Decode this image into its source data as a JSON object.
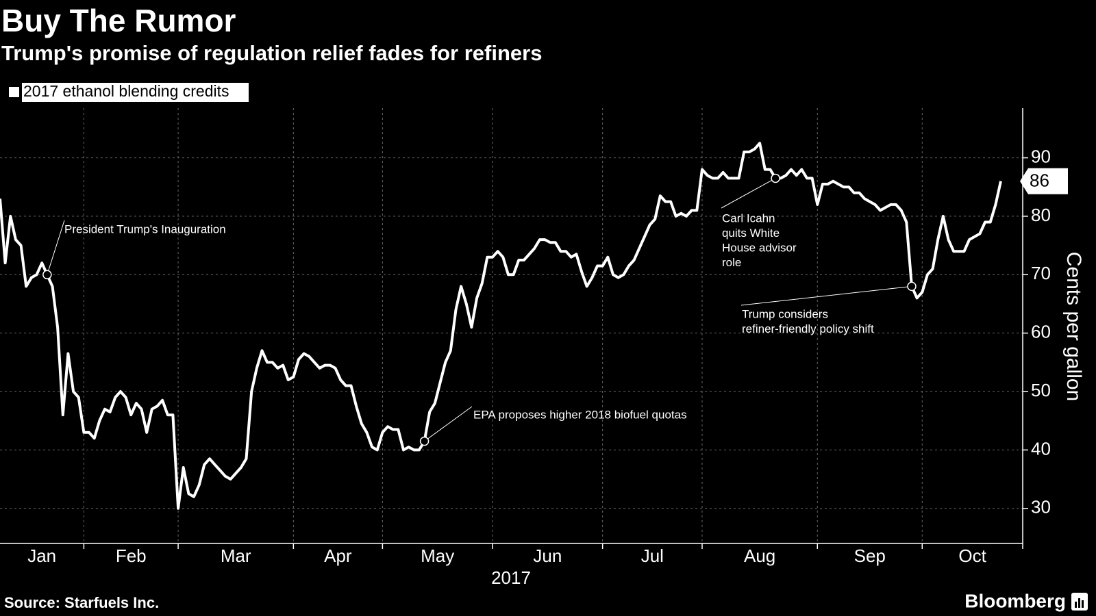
{
  "chart_data": {
    "type": "line",
    "title": "Buy The Rumor",
    "subtitle": "Trump's promise of regulation relief fades for refiners",
    "y_label": "Cents per gallon",
    "x_label": "2017",
    "source": "Source: Starfuels Inc.",
    "brand": "Bloomberg",
    "legend_position": "top-left",
    "grid": true,
    "ylim": [
      24,
      98.5
    ],
    "yticks": [
      30,
      40,
      50,
      60,
      70,
      80,
      90
    ],
    "categories": [
      "Jan",
      null,
      null,
      null,
      null,
      null,
      null,
      null,
      null,
      null,
      null,
      null,
      null,
      null,
      null,
      null,
      "Feb",
      null,
      null,
      null,
      null,
      null,
      null,
      null,
      null,
      null,
      null,
      null,
      null,
      null,
      null,
      null,
      null,
      null,
      "Mar",
      null,
      null,
      null,
      null,
      null,
      null,
      null,
      null,
      null,
      null,
      null,
      null,
      null,
      null,
      null,
      null,
      null,
      null,
      null,
      null,
      null,
      "Apr",
      null,
      null,
      null,
      null,
      null,
      null,
      null,
      null,
      null,
      null,
      null,
      null,
      null,
      null,
      null,
      null,
      "May",
      null,
      null,
      null,
      null,
      null,
      null,
      null,
      null,
      null,
      null,
      null,
      null,
      null,
      null,
      null,
      null,
      null,
      null,
      null,
      null,
      "Jun",
      null,
      null,
      null,
      null,
      null,
      null,
      null,
      null,
      null,
      null,
      null,
      null,
      null,
      null,
      null,
      null,
      null,
      null,
      null,
      null,
      "Jul",
      null,
      null,
      null,
      null,
      null,
      null,
      null,
      null,
      null,
      null,
      null,
      null,
      null,
      null,
      null,
      null,
      null,
      null,
      "Aug",
      null,
      null,
      null,
      null,
      null,
      null,
      null,
      null,
      null,
      null,
      null,
      null,
      null,
      null,
      null,
      null,
      null,
      null,
      null,
      null,
      null,
      "Sep",
      null,
      null,
      null,
      null,
      null,
      null,
      null,
      null,
      null,
      null,
      null,
      null,
      null,
      null,
      null,
      null,
      null,
      null,
      null,
      "Oct",
      null,
      null,
      null,
      null,
      null,
      null,
      null,
      null,
      null,
      null,
      null,
      null,
      null,
      null,
      null
    ],
    "series": [
      {
        "name": "2017 ethanol blending credits",
        "color": "#ffffff",
        "values": [
          83,
          72,
          80,
          76,
          75,
          68,
          69.5,
          70,
          72,
          70,
          68,
          61,
          46,
          56.5,
          50,
          49,
          43,
          43,
          42,
          45,
          47,
          46.5,
          49,
          50,
          49,
          46,
          48,
          47,
          43,
          47,
          47.5,
          48.5,
          46,
          46,
          30,
          37,
          32.5,
          32,
          34,
          37.5,
          38.5,
          37.5,
          36.5,
          35.5,
          35,
          36,
          37,
          38.5,
          50,
          54,
          57,
          55,
          55,
          54,
          54.5,
          52,
          52.5,
          55.5,
          56.5,
          56,
          55,
          54,
          54.5,
          54.5,
          54,
          52,
          51,
          51,
          47.5,
          44.5,
          43,
          40.5,
          40,
          43,
          44,
          43.5,
          43.5,
          40,
          40.5,
          40,
          40,
          41.5,
          46.5,
          48,
          51.5,
          55,
          57,
          64,
          68,
          65,
          61,
          66,
          68.5,
          73,
          73,
          74,
          73,
          70,
          70,
          72.5,
          72.5,
          73.5,
          74.5,
          76,
          76,
          75.5,
          75.5,
          74,
          74,
          73,
          73.5,
          70.5,
          68,
          69.5,
          71.5,
          71.5,
          73,
          70,
          69.5,
          70,
          71.5,
          72.5,
          74.5,
          76.5,
          78.5,
          79.5,
          83.5,
          82.5,
          82.5,
          80,
          80.5,
          80,
          81,
          81,
          88,
          87,
          86.5,
          86.5,
          87.5,
          86.5,
          86.5,
          86.5,
          91,
          91,
          91.5,
          92.5,
          88,
          88,
          86.5,
          86.5,
          87,
          88,
          87,
          88,
          86.5,
          86.5,
          82,
          85.5,
          85.5,
          86,
          85.5,
          85,
          85,
          84,
          84,
          83,
          82.5,
          82,
          81,
          81.5,
          82,
          82,
          81,
          79,
          68,
          66,
          67,
          70,
          71,
          76,
          80,
          76,
          74,
          74,
          74,
          76,
          76.5,
          77,
          79,
          79,
          82,
          86
        ]
      }
    ],
    "annotations": [
      {
        "point": 9,
        "lines": [
          "President Trump's Inauguration"
        ]
      },
      {
        "point": 81,
        "lines": [
          "EPA proposes higher 2018 biofuel quotas"
        ]
      },
      {
        "point": 148,
        "lines": [
          "Carl Icahn",
          "quits White",
          "House advisor",
          "role"
        ]
      },
      {
        "point": 174,
        "lines": [
          "Trump considers",
          "refiner-friendly policy shift"
        ]
      }
    ]
  }
}
